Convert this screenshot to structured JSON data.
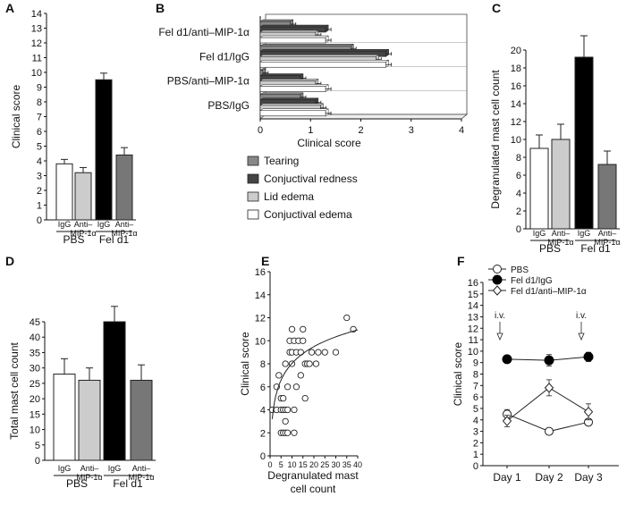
{
  "panels": [
    {
      "panel": "A",
      "chart_data": {
        "type": "bar",
        "ylabel": "Clinical score",
        "ylim": [
          0,
          14
        ],
        "yticks": [
          0,
          1,
          2,
          3,
          4,
          5,
          6,
          7,
          8,
          9,
          10,
          11,
          12,
          13,
          14
        ],
        "bars": [
          {
            "label": "IgG",
            "value": 3.8,
            "error": 0.3,
            "color": "#ffffff"
          },
          {
            "label": "Anti–MIP-1α",
            "value": 3.2,
            "error": 0.35,
            "color": "#cccccc"
          },
          {
            "label": "IgG",
            "value": 9.5,
            "error": 0.45,
            "color": "#000000"
          },
          {
            "label": "Anti–MIP-1α",
            "value": 4.4,
            "error": 0.5,
            "color": "#777777"
          }
        ],
        "groups": [
          "PBS",
          "Fel d1"
        ]
      }
    },
    {
      "panel": "B",
      "chart_data": {
        "type": "bar",
        "orientation": "horizontal",
        "xlabel": "Clinical score",
        "xlim": [
          0,
          4
        ],
        "xticks": [
          0,
          1,
          2,
          3,
          4
        ],
        "categories": [
          "Fel d1/anti–MIP-1α",
          "Fel d1/IgG",
          "PBS/anti–MIP-1α",
          "PBS/IgG"
        ],
        "series": [
          {
            "name": "Tearing",
            "color": "#888888",
            "values": [
              0.6,
              1.8,
              0.05,
              0.8
            ]
          },
          {
            "name": "Conjuctival redness",
            "color": "#444444",
            "values": [
              1.3,
              2.5,
              0.8,
              1.1
            ]
          },
          {
            "name": "Lid edema",
            "color": "#cccccc",
            "values": [
              1.1,
              2.3,
              1.1,
              1.2
            ]
          },
          {
            "name": "Conjuctival edema",
            "color": "#ffffff",
            "values": [
              1.3,
              2.5,
              1.3,
              1.3
            ]
          }
        ],
        "legend_order": [
          "Tearing",
          "Conjuctival redness",
          "Lid edema",
          "Conjuctival edema"
        ]
      }
    },
    {
      "panel": "C",
      "chart_data": {
        "type": "bar",
        "ylabel": "Degranulated mast cell count",
        "ylim": [
          0,
          20
        ],
        "yticks": [
          0,
          2,
          4,
          6,
          8,
          10,
          12,
          14,
          16,
          18,
          20
        ],
        "bars": [
          {
            "label": "IgG",
            "value": 9.0,
            "error": 1.5,
            "color": "#ffffff"
          },
          {
            "label": "Anti–MIP-1α",
            "value": 10.0,
            "error": 1.7,
            "color": "#cccccc"
          },
          {
            "label": "IgG",
            "value": 19.2,
            "error": 2.4,
            "color": "#000000"
          },
          {
            "label": "Anti–MIP-1α",
            "value": 7.2,
            "error": 1.5,
            "color": "#777777"
          }
        ],
        "groups": [
          "PBS",
          "Fel d1"
        ]
      }
    },
    {
      "panel": "D",
      "chart_data": {
        "type": "bar",
        "ylabel": "Total mast cell count",
        "ylim": [
          0,
          45
        ],
        "yticks": [
          0,
          5,
          10,
          15,
          20,
          25,
          30,
          35,
          40,
          45
        ],
        "bars": [
          {
            "label": "IgG",
            "value": 28,
            "error": 5,
            "color": "#ffffff"
          },
          {
            "label": "Anti–MIP-1α",
            "value": 26,
            "error": 4,
            "color": "#cccccc"
          },
          {
            "label": "IgG",
            "value": 45,
            "error": 5,
            "color": "#000000"
          },
          {
            "label": "Anti–MIP-1α",
            "value": 26,
            "error": 5,
            "color": "#777777"
          }
        ],
        "groups": [
          "PBS",
          "Fel d1"
        ]
      }
    },
    {
      "panel": "E",
      "chart_data": {
        "type": "scatter",
        "xlabel": "Degranulated mast cell count",
        "ylabel": "Clinical score",
        "xlim": [
          0,
          40
        ],
        "ylim": [
          0,
          16
        ],
        "xticks": [
          0,
          5,
          10,
          15,
          20,
          25,
          30,
          35,
          40
        ],
        "yticks": [
          0,
          2,
          4,
          6,
          8,
          10,
          12,
          14,
          16
        ],
        "points": [
          [
            1,
            4
          ],
          [
            3,
            4
          ],
          [
            3,
            6
          ],
          [
            4,
            7
          ],
          [
            5,
            2
          ],
          [
            5,
            4
          ],
          [
            5,
            5
          ],
          [
            6,
            2
          ],
          [
            6,
            4
          ],
          [
            6,
            5
          ],
          [
            7,
            2
          ],
          [
            7,
            3
          ],
          [
            7,
            4
          ],
          [
            7,
            8
          ],
          [
            8,
            2
          ],
          [
            8,
            4
          ],
          [
            8,
            6
          ],
          [
            9,
            9
          ],
          [
            9,
            10
          ],
          [
            10,
            9
          ],
          [
            10,
            11
          ],
          [
            10,
            8
          ],
          [
            11,
            10
          ],
          [
            11,
            4
          ],
          [
            11,
            2
          ],
          [
            12,
            9
          ],
          [
            12,
            6
          ],
          [
            13,
            10
          ],
          [
            14,
            9
          ],
          [
            14,
            7
          ],
          [
            15,
            11
          ],
          [
            15,
            10
          ],
          [
            16,
            8
          ],
          [
            16,
            5
          ],
          [
            17,
            8
          ],
          [
            18,
            8
          ],
          [
            19,
            9
          ],
          [
            21,
            8
          ],
          [
            22,
            9
          ],
          [
            25,
            9
          ],
          [
            30,
            9
          ],
          [
            35,
            12
          ],
          [
            38,
            11
          ]
        ],
        "fit": "logarithmic"
      }
    },
    {
      "panel": "F",
      "chart_data": {
        "type": "line",
        "ylabel": "Clinical score",
        "ylim": [
          0,
          16
        ],
        "yticks": [
          0,
          1,
          2,
          3,
          4,
          5,
          6,
          7,
          8,
          9,
          10,
          11,
          12,
          13,
          14,
          15,
          16
        ],
        "categories": [
          "Day 1",
          "Day 2",
          "Day 3"
        ],
        "series": [
          {
            "name": "PBS",
            "marker": "open-circle",
            "values": [
              4.5,
              3.0,
              3.8
            ],
            "errors": [
              0.4,
              0.0,
              0.3
            ]
          },
          {
            "name": "Fel d1/IgG",
            "marker": "filled-circle",
            "values": [
              9.3,
              9.2,
              9.5
            ],
            "errors": [
              0.3,
              0.5,
              0.4
            ]
          },
          {
            "name": "Fel d1/anti–MIP-1α",
            "marker": "open-diamond",
            "values": [
              3.9,
              6.8,
              4.7
            ],
            "errors": [
              0.5,
              0.7,
              0.7
            ]
          }
        ],
        "annotations": [
          {
            "text": "i.v.",
            "at": "Day 1"
          },
          {
            "text": "i.v.",
            "at": "Day 3"
          }
        ]
      }
    }
  ]
}
